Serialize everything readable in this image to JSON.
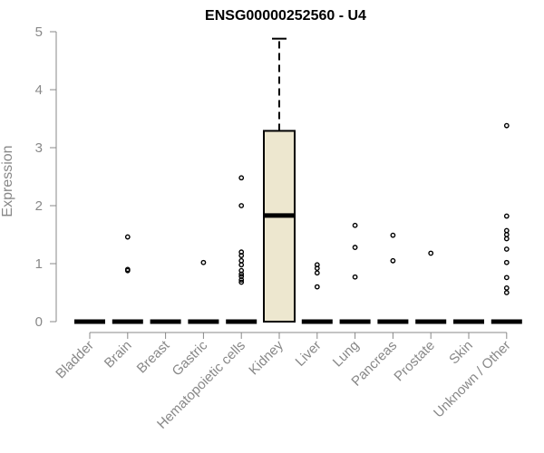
{
  "chart_data": {
    "type": "box",
    "title": "ENSG00000252560 - U4",
    "xlabel": "",
    "ylabel": "Expression",
    "ylim": [
      0,
      5
    ],
    "yticks": [
      0,
      1,
      2,
      3,
      4,
      5
    ],
    "grid": false,
    "legend": "none",
    "box_fill": "#ede7cf",
    "line_color": "#000000",
    "categories": [
      "Bladder",
      "Brain",
      "Breast",
      "Gastric",
      "Hematopoietic cells",
      "Kidney",
      "Liver",
      "Lung",
      "Pancreas",
      "Prostate",
      "Skin",
      "Unknown / Other"
    ],
    "boxes": [
      {
        "category": "Bladder",
        "q1": 0,
        "median": 0,
        "q3": 0,
        "whisker_low": 0,
        "whisker_high": 0,
        "outliers": []
      },
      {
        "category": "Brain",
        "q1": 0,
        "median": 0,
        "q3": 0,
        "whisker_low": 0,
        "whisker_high": 0,
        "outliers": [
          1.46,
          0.9,
          0.88
        ]
      },
      {
        "category": "Breast",
        "q1": 0,
        "median": 0,
        "q3": 0,
        "whisker_low": 0,
        "whisker_high": 0,
        "outliers": []
      },
      {
        "category": "Gastric",
        "q1": 0,
        "median": 0,
        "q3": 0,
        "whisker_low": 0,
        "whisker_high": 0,
        "outliers": [
          1.02
        ]
      },
      {
        "category": "Hematopoietic cells",
        "q1": 0,
        "median": 0,
        "q3": 0,
        "whisker_low": 0,
        "whisker_high": 0,
        "outliers": [
          2.48,
          2.0,
          1.2,
          1.14,
          1.05,
          0.98,
          0.88,
          0.82,
          0.78,
          0.72,
          0.68
        ]
      },
      {
        "category": "Kidney",
        "q1": 0,
        "median": 1.83,
        "q3": 3.29,
        "whisker_low": 0,
        "whisker_high": 4.88,
        "outliers": []
      },
      {
        "category": "Liver",
        "q1": 0,
        "median": 0,
        "q3": 0,
        "whisker_low": 0,
        "whisker_high": 0,
        "outliers": [
          0.98,
          0.92,
          0.84,
          0.6
        ]
      },
      {
        "category": "Lung",
        "q1": 0,
        "median": 0,
        "q3": 0,
        "whisker_low": 0,
        "whisker_high": 0,
        "outliers": [
          1.66,
          1.28,
          0.77
        ]
      },
      {
        "category": "Pancreas",
        "q1": 0,
        "median": 0,
        "q3": 0,
        "whisker_low": 0,
        "whisker_high": 0,
        "outliers": [
          1.49,
          1.05
        ]
      },
      {
        "category": "Prostate",
        "q1": 0,
        "median": 0,
        "q3": 0,
        "whisker_low": 0,
        "whisker_high": 0,
        "outliers": [
          1.18
        ]
      },
      {
        "category": "Skin",
        "q1": 0,
        "median": 0,
        "q3": 0,
        "whisker_low": 0,
        "whisker_high": 0,
        "outliers": []
      },
      {
        "category": "Unknown / Other",
        "q1": 0,
        "median": 0,
        "q3": 0,
        "whisker_low": 0,
        "whisker_high": 0,
        "outliers": [
          3.38,
          1.82,
          1.57,
          1.5,
          1.43,
          1.25,
          1.02,
          0.76,
          0.58,
          0.5
        ]
      }
    ]
  }
}
